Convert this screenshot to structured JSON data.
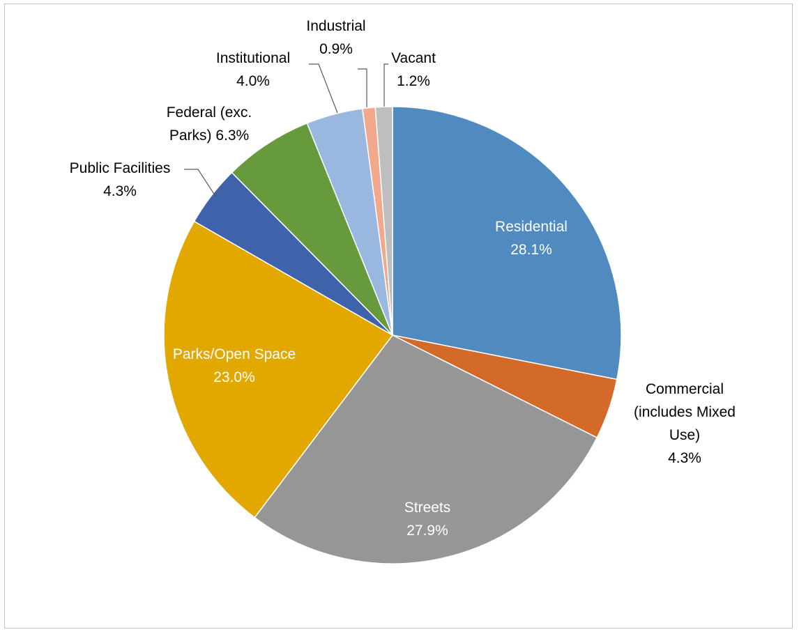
{
  "chart_data": {
    "type": "pie",
    "title": "",
    "legend": "none",
    "start_angle_deg": 0,
    "direction": "clockwise",
    "slices": [
      {
        "name": "Residential",
        "label_lines": [
          "Residential"
        ],
        "value_label": "28.1%",
        "value": 28.1,
        "color": "#508ABE",
        "label_inside": true,
        "label_color": "#ffffff"
      },
      {
        "name": "Commercial (includes Mixed Use)",
        "label_lines": [
          "Commercial",
          "(includes Mixed",
          "Use)"
        ],
        "value_label": "4.3%",
        "value": 4.3,
        "color": "#D46A2A",
        "label_inside": false,
        "label_color": "#000000"
      },
      {
        "name": "Streets",
        "label_lines": [
          "Streets"
        ],
        "value_label": "27.9%",
        "value": 27.9,
        "color": "#969696",
        "label_inside": true,
        "label_color": "#ffffff"
      },
      {
        "name": "Parks/Open Space",
        "label_lines": [
          "Parks/Open Space"
        ],
        "value_label": "23.0%",
        "value": 23.0,
        "color": "#E2A800",
        "label_inside": true,
        "label_color": "#ffffff"
      },
      {
        "name": "Public Facilities",
        "label_lines": [
          "Public Facilities"
        ],
        "value_label": "4.3%",
        "value": 4.3,
        "color": "#3F63AA",
        "label_inside": false,
        "label_color": "#000000"
      },
      {
        "name": "Federal (exc. Parks)",
        "label_lines": [
          "Federal (exc.",
          "Parks) 6.3%"
        ],
        "value_label": "",
        "value": 6.3,
        "color": "#669A3C",
        "label_inside": false,
        "label_color": "#000000"
      },
      {
        "name": "Institutional",
        "label_lines": [
          "Institutional"
        ],
        "value_label": "4.0%",
        "value": 4.0,
        "color": "#9AB8DF",
        "label_inside": false,
        "label_color": "#000000"
      },
      {
        "name": "Industrial",
        "label_lines": [
          "Industrial"
        ],
        "value_label": "0.9%",
        "value": 0.9,
        "color": "#F2A88D",
        "label_inside": false,
        "label_color": "#000000"
      },
      {
        "name": "Vacant",
        "label_lines": [
          "Vacant"
        ],
        "value_label": "1.2%",
        "value": 1.2,
        "color": "#BEBEBE",
        "label_inside": false,
        "label_color": "#000000"
      }
    ]
  }
}
